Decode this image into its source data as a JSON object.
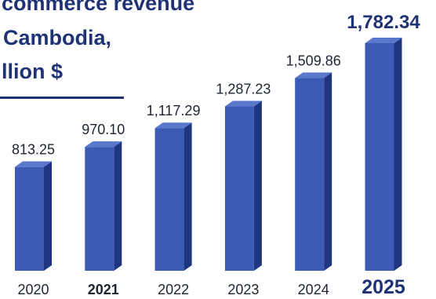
{
  "title_lines": [
    "commerce revenue",
    "Cambodia,",
    "llion $"
  ],
  "chart_data": {
    "type": "bar",
    "title": "commerce revenue Cambodia, llion $",
    "categories": [
      "2020",
      "2021",
      "2022",
      "2023",
      "2024",
      "2025"
    ],
    "values": [
      813.25,
      970.1,
      1117.29,
      1287.23,
      1509.86,
      1782.34
    ],
    "value_labels": [
      "813.25",
      "970.10",
      "1,117.29",
      "1,287.23",
      "1,509.86",
      "1,782.34"
    ],
    "highlight_index": 5,
    "bold_category_indices": [
      1,
      5
    ],
    "ylim": [
      0,
      1782.34
    ],
    "grid": false,
    "legend": "none",
    "colors": {
      "bar_front": "#3b5bb5",
      "bar_side": "#1e3680",
      "bar_top": "#5a78cc",
      "title": "#1f3275"
    }
  }
}
